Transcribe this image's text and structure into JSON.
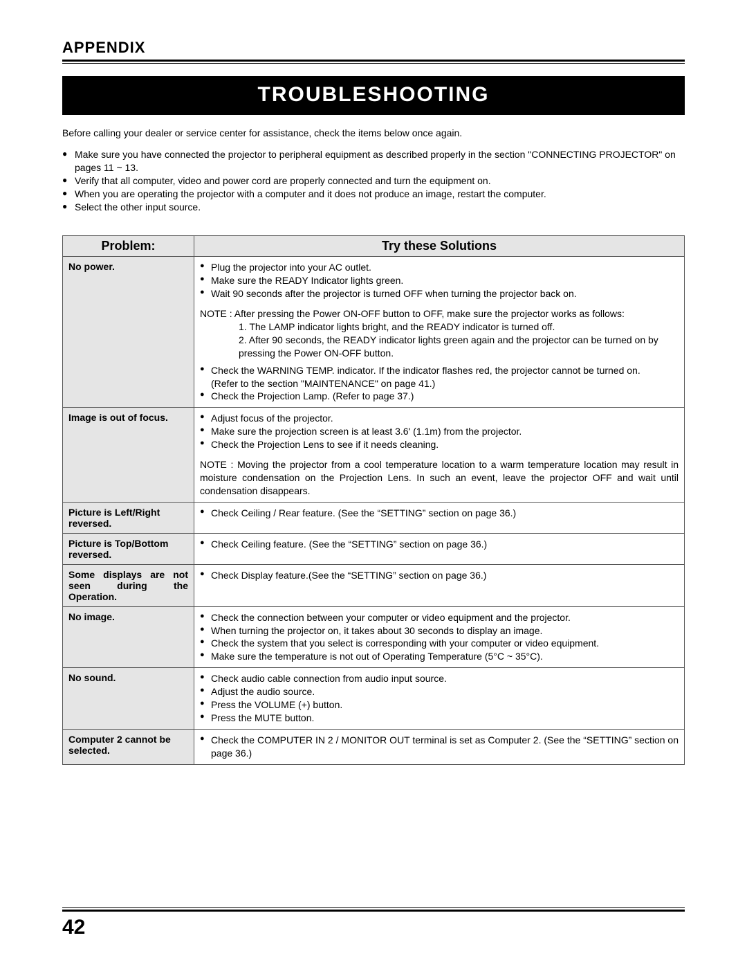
{
  "header": {
    "appendix": "APPENDIX",
    "banner": "TROUBLESHOOTING"
  },
  "intro": "Before calling your dealer or service center for assistance, check the items below once again.",
  "pre_bullets": [
    "Make sure you have connected the projector to peripheral equipment as described properly in the section \"CONNECTING PROJECTOR\"  on pages 11 ~ 13.",
    "Verify that all computer, video and power cord are properly connected and turn the equipment on.",
    "When you are operating the projector with a computer and it does not produce an image, restart the computer.",
    "Select the other input source."
  ],
  "table": {
    "head_problem": "Problem:",
    "head_solution": "Try these Solutions",
    "rows": [
      {
        "problem": "No power.",
        "cells": [
          {
            "type": "bullet",
            "text": "Plug the projector into your AC outlet."
          },
          {
            "type": "bullet",
            "text": "Make sure the READY Indicator lights green."
          },
          {
            "type": "bullet",
            "text": "Wait 90 seconds after the projector is turned OFF when turning the projector back on."
          },
          {
            "type": "sep"
          },
          {
            "type": "note",
            "text": "NOTE : After pressing the Power ON-OFF button to OFF, make sure the projector works as follows:"
          },
          {
            "type": "sub",
            "text": "1.  The LAMP indicator lights bright, and the READY indicator is turned off."
          },
          {
            "type": "sub",
            "text": "2.  After 90 seconds, the READY indicator lights green again and the projector can be turned on by pressing the Power ON-OFF button."
          },
          {
            "type": "sep"
          },
          {
            "type": "bullet",
            "justify": true,
            "text": "Check the WARNING TEMP. indicator.  If the indicator flashes red, the projector cannot be turned on."
          },
          {
            "type": "plain",
            "text": "(Refer to the section \"MAINTENANCE\" on page 41.)"
          },
          {
            "type": "bullet",
            "text": "Check the Projection Lamp.  (Refer to page 37.)"
          }
        ]
      },
      {
        "problem": "Image is out of focus.",
        "cells": [
          {
            "type": "bullet",
            "text": "Adjust focus of the projector."
          },
          {
            "type": "bullet",
            "text": "Make sure the projection screen is at least 3.6' (1.1m) from the projector."
          },
          {
            "type": "bullet",
            "text": "Check the Projection Lens to see if it needs cleaning."
          },
          {
            "type": "sep"
          },
          {
            "type": "note",
            "justify": true,
            "text": "NOTE : Moving the projector from a cool temperature location to a warm temperature location may result in moisture condensation on the Projection Lens.  In such an event, leave the projector OFF and wait until condensation disappears."
          }
        ]
      },
      {
        "problem": "Picture is Left/Right reversed.",
        "cells": [
          {
            "type": "bullet",
            "text": "Check Ceiling / Rear feature.  (See the “SETTING” section on page 36.)"
          }
        ]
      },
      {
        "problem": "Picture is Top/Bottom reversed.",
        "cells": [
          {
            "type": "bullet",
            "text": "Check Ceiling feature.  (See the “SETTING” section on page 36.)"
          }
        ]
      },
      {
        "problem": "Some displays are not seen during the Operation.",
        "problem_justify": true,
        "cells": [
          {
            "type": "bullet",
            "text": "Check Display feature.(See the “SETTING” section on page 36.)"
          }
        ]
      },
      {
        "problem": "No image.",
        "cells": [
          {
            "type": "bullet",
            "text": "Check the connection between your computer or video equipment and the projector."
          },
          {
            "type": "bullet",
            "text": "When turning the projector on, it takes about 30 seconds to display an image."
          },
          {
            "type": "bullet",
            "justify": true,
            "text": "Check the system that you select is corresponding with your computer or video equipment."
          },
          {
            "type": "bullet",
            "text": "Make sure the temperature is not out of Operating Temperature (5°C ~ 35°C)."
          }
        ]
      },
      {
        "problem": "No sound.",
        "cells": [
          {
            "type": "bullet",
            "text": "Check audio cable connection from audio input source."
          },
          {
            "type": "bullet",
            "text": "Adjust the audio source."
          },
          {
            "type": "bullet",
            "text": "Press the VOLUME (+) button."
          },
          {
            "type": "bullet",
            "text": "Press the MUTE button."
          }
        ]
      },
      {
        "problem": "Computer 2 cannot be selected.",
        "cells": [
          {
            "type": "bullet",
            "justify": true,
            "text": "Check the COMPUTER IN 2 / MONITOR OUT terminal is set as Computer 2.   (See the “SETTING” section on page 36.)"
          }
        ]
      }
    ]
  },
  "page_number": "42"
}
